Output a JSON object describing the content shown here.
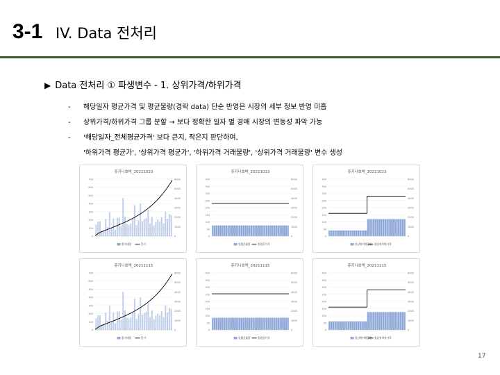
{
  "slide": {
    "number": "3-1",
    "title": "IV. Data 전처리",
    "section": "Data 전처리 ① 파생변수 - 1. 상위가격/하위가격",
    "bullets": [
      "해당일자 평균가격 및  평균물량(경락 data) 단순 반영은 시장의 세부 정보 반영 미흡",
      "상위가격/하위가격 그룹 분할 → 보다 정확한 일자 별 경매 시장의 변동성 파악 가능",
      "'해당일자_전체평균가격' 보다 큰지, 작은지 판단하여,"
    ],
    "bullet_continuation": "'하위가격 평균가', '상위가격 평균가', '하위가격 거래물량', '상위가격 거래물량' 변수 생성",
    "page_number": "17"
  },
  "chart_data": [
    {
      "type": "bar",
      "title": "쥬키니호박_20211023",
      "ylim_left": [
        0,
        700
      ],
      "yticks_left": [
        0,
        100,
        200,
        300,
        400,
        500,
        600,
        700
      ],
      "ylim_right": [
        0,
        6000
      ],
      "yticks_right": [
        0,
        1000,
        2000,
        3000,
        4000,
        5000,
        6000
      ],
      "series": [
        {
          "name": "중거래량",
          "kind": "bar-noisy",
          "axis": "left",
          "color": "#8fa8d8"
        },
        {
          "name": "단가",
          "kind": "line-rising",
          "axis": "right",
          "color": "#000000",
          "from": 200,
          "to": 5900
        }
      ]
    },
    {
      "type": "bar",
      "title": "쥬키니호박_20211023",
      "ylim_left": [
        0,
        400
      ],
      "yticks_left": [
        0,
        50,
        100,
        150,
        200,
        250,
        300,
        350,
        400
      ],
      "ylim_right": [
        0,
        6000
      ],
      "yticks_right": [
        0,
        1000,
        2000,
        3000,
        4000,
        5000,
        6000
      ],
      "series": [
        {
          "name": "일평균물량",
          "kind": "bar-flat",
          "axis": "left",
          "color": "#8fa8d8",
          "value": 75
        },
        {
          "name": "일평균가격",
          "kind": "line-flat",
          "axis": "right",
          "color": "#000000",
          "value": 3450
        }
      ]
    },
    {
      "type": "bar",
      "title": "쥬키니호박_20211023",
      "ylim_left": [
        0,
        400
      ],
      "yticks_left": [
        0,
        50,
        100,
        150,
        200,
        250,
        300,
        350,
        400
      ],
      "ylim_right": [
        0,
        6000
      ],
      "yticks_right": [
        0,
        1000,
        2000,
        3000,
        4000,
        5000,
        6000
      ],
      "series": [
        {
          "name": "일상위하위물량",
          "kind": "bar-step",
          "axis": "left",
          "color": "#8fa8d8",
          "low": 40,
          "high": 120
        },
        {
          "name": "일상위하위가격",
          "kind": "line-step",
          "axis": "right",
          "color": "#000000",
          "low": 2400,
          "high": 4200
        }
      ]
    },
    {
      "type": "bar",
      "title": "쥬키니호박_20211115",
      "ylim_left": [
        0,
        700
      ],
      "yticks_left": [
        0,
        100,
        200,
        300,
        400,
        500,
        600,
        700
      ],
      "ylim_right": [
        0,
        6000
      ],
      "yticks_right": [
        0,
        1000,
        2000,
        3000,
        4000,
        5000,
        6000
      ],
      "series": [
        {
          "name": "중거래량",
          "kind": "bar-noisy",
          "axis": "left",
          "color": "#8fa8d8"
        },
        {
          "name": "단가",
          "kind": "line-rising",
          "axis": "right",
          "color": "#000000",
          "from": 200,
          "to": 5900
        }
      ]
    },
    {
      "type": "bar",
      "title": "쥬키니호박_20211115",
      "ylim_left": [
        0,
        400
      ],
      "yticks_left": [
        0,
        50,
        100,
        150,
        200,
        250,
        300,
        350,
        400
      ],
      "ylim_right": [
        0,
        6000
      ],
      "yticks_right": [
        0,
        1000,
        2000,
        3000,
        4000,
        5000,
        6000
      ],
      "series": [
        {
          "name": "일평균물량",
          "kind": "bar-flat",
          "axis": "left",
          "color": "#8fa8d8",
          "value": 85
        },
        {
          "name": "일평균가격",
          "kind": "line-flat",
          "axis": "right",
          "color": "#000000",
          "value": 3800
        }
      ]
    },
    {
      "type": "bar",
      "title": "쥬키니호박_20211115",
      "ylim_left": [
        0,
        400
      ],
      "yticks_left": [
        0,
        50,
        100,
        150,
        200,
        250,
        300,
        350,
        400
      ],
      "ylim_right": [
        0,
        6000
      ],
      "yticks_right": [
        0,
        1000,
        2000,
        3000,
        4000,
        5000,
        6000
      ],
      "series": [
        {
          "name": "일상위하위물량",
          "kind": "bar-step",
          "axis": "left",
          "color": "#8fa8d8",
          "low": 60,
          "high": 125
        },
        {
          "name": "일상위하위가격",
          "kind": "line-step",
          "axis": "right",
          "color": "#000000",
          "low": 2400,
          "high": 4200
        }
      ]
    }
  ]
}
